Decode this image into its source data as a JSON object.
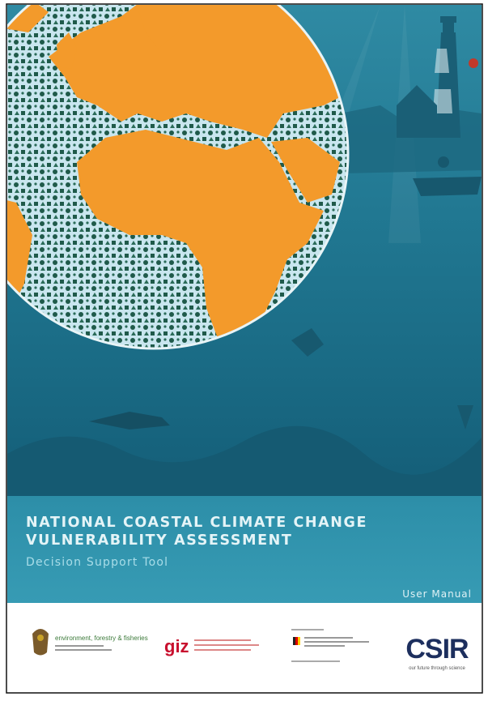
{
  "cover": {
    "title_lines": [
      "NATIONAL COASTAL CLIMATE CHANGE",
      "VULNERABILITY ASSESSMENT"
    ],
    "subtitle": "Decision Support Tool",
    "document_type": "User Manual"
  },
  "logos": {
    "dffe": "environment, forestry & fisheries",
    "giz": "giz",
    "csir": "CSIR",
    "csir_tagline": "our future through science"
  }
}
